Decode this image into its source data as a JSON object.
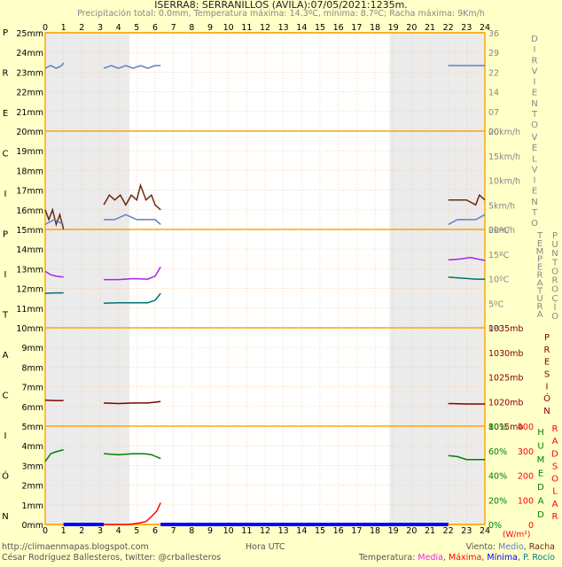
{
  "title": "ISERRA8: SERRANILLOS (AVILA):07/05/2021:1235m.",
  "subtitle": "Precipitación total: 0.0mm, Temperatura máxima: 14.3ºC, mínima: 8.7ºC; Racha máxima: 9Km/h",
  "footer": {
    "blog": "http://climaenmapas.blogspot.com",
    "author": "César Rodríguez Ballesteros, twitter: @crballesteros",
    "xlabel": "Hora UTC",
    "wind_legend_prefix": "Viento: ",
    "wind_legend_media": "Medio",
    "wind_legend_sep": ", ",
    "wind_legend_racha": "Racha",
    "temp_legend_prefix": "Temperatura: ",
    "temp_legend_media": "Media",
    "temp_legend_maxima": "Máxima",
    "temp_legend_minima": "Mínima",
    "temp_legend_rocio": "P. Rocío",
    "sep": ", "
  },
  "left_vertical_label": "PRECIPITACIÓN",
  "colors": {
    "background": "#ffffc8",
    "plot_bg": "#ffffff",
    "night_shade": "#ebebeb",
    "panel_border": "#ffa500",
    "grid": "#ffc080",
    "wind_media": "#6080c0",
    "wind_racha": "#6b2a10",
    "temp_media": "#aa22ee",
    "temp_dewpoint": "#007070",
    "pressure": "#800000",
    "humidity": "#008000",
    "solar": "#ff0000",
    "rain_bar": "#0000ff"
  },
  "chart_data": {
    "type": "line",
    "x_range": [
      0,
      24
    ],
    "x_ticks": [
      "0",
      "1",
      "2",
      "3",
      "4",
      "5",
      "6",
      "7",
      "8",
      "9",
      "10",
      "11",
      "12",
      "13",
      "14",
      "15",
      "16",
      "17",
      "18",
      "19",
      "20",
      "21",
      "22",
      "23",
      "24"
    ],
    "night_shading_hours": [
      [
        0,
        4.6
      ],
      [
        18.8,
        24
      ]
    ],
    "precip_ticks_left": [
      "25mm",
      "24mm",
      "23mm",
      "22mm",
      "21mm",
      "20mm",
      "19mm",
      "18mm",
      "17mm",
      "16mm",
      "15mm",
      "14mm",
      "13mm",
      "12mm",
      "11mm",
      "10mm",
      "9mm",
      "8mm",
      "7mm",
      "6mm",
      "5mm",
      "4mm",
      "3mm",
      "2mm",
      "1mm",
      "0mm"
    ],
    "precipitation_total_mm": 0.0,
    "data_gaps_hours": [
      [
        1,
        3.2
      ],
      [
        6.3,
        22
      ]
    ],
    "panels": [
      {
        "name": "wind_direction",
        "label": "DIR VIENTO",
        "ticks": [
          "36",
          "29",
          "22",
          "14",
          "07",
          "00"
        ],
        "series": [
          {
            "name": "Dirección",
            "x": [
              0,
              0.3,
              0.6,
              0.9,
              1.0
            ],
            "y": [
              23,
              24,
              23,
              24,
              25
            ]
          },
          {
            "name": "Dirección",
            "x": [
              3.2,
              3.6,
              4.0,
              4.4,
              4.8,
              5.2,
              5.6,
              6.0,
              6.3
            ],
            "y": [
              23,
              24,
              23,
              24,
              23,
              24,
              23,
              24,
              24
            ]
          },
          {
            "name": "Dirección",
            "x": [
              22,
              22.5,
              23,
              23.5,
              24
            ],
            "y": [
              24,
              24,
              24,
              24,
              24
            ]
          }
        ]
      },
      {
        "name": "wind_speed",
        "label": "VEL VIENTO",
        "ticks": [
          "20km/h",
          "15km/h",
          "10km/h",
          "5km/h",
          "0km/h"
        ],
        "series": [
          {
            "name": "Racha",
            "x": [
              0,
              0.2,
              0.4,
              0.6,
              0.8,
              1.0
            ],
            "y": [
              4,
              2,
              4,
              1,
              3,
              0
            ]
          },
          {
            "name": "Racha",
            "x": [
              3.2,
              3.5,
              3.8,
              4.1,
              4.4,
              4.7,
              5.0,
              5.2,
              5.5,
              5.8,
              6.0,
              6.3
            ],
            "y": [
              5,
              7,
              6,
              7,
              5,
              7,
              6,
              9,
              6,
              7,
              5,
              4
            ]
          },
          {
            "name": "Racha",
            "x": [
              22,
              22.5,
              23,
              23.5,
              23.7,
              24
            ],
            "y": [
              6,
              6,
              6,
              5,
              7,
              6
            ]
          },
          {
            "name": "Medio",
            "x": [
              0,
              0.5,
              1.0
            ],
            "y": [
              1,
              2,
              1
            ]
          },
          {
            "name": "Medio",
            "x": [
              3.2,
              3.8,
              4.4,
              5.0,
              5.6,
              6.0,
              6.3
            ],
            "y": [
              2,
              2,
              3,
              2,
              2,
              2,
              1
            ]
          },
          {
            "name": "Medio",
            "x": [
              22,
              22.5,
              23,
              23.5,
              24
            ],
            "y": [
              1,
              2,
              2,
              2,
              3
            ]
          }
        ]
      },
      {
        "name": "temperature",
        "label": "TEMPERATURA PUNTO ROCÍO",
        "ticks": [
          "20ºC",
          "15ºC",
          "10ºC",
          "5ºC",
          "0ºC"
        ],
        "series": [
          {
            "name": "Media",
            "x": [
              0,
              0.3,
              0.6,
              1.0
            ],
            "y": [
              11.5,
              10.8,
              10.5,
              10.3
            ]
          },
          {
            "name": "Media",
            "x": [
              3.2,
              4.0,
              4.8,
              5.6,
              6.0,
              6.3
            ],
            "y": [
              9.8,
              9.8,
              10.0,
              9.9,
              10.5,
              12.4
            ]
          },
          {
            "name": "Media",
            "x": [
              22,
              22.7,
              23.2,
              24
            ],
            "y": [
              13.8,
              14.0,
              14.3,
              13.7
            ]
          },
          {
            "name": "P. Rocío",
            "x": [
              0,
              0.5,
              1.0
            ],
            "y": [
              7.0,
              7.1,
              7.1
            ]
          },
          {
            "name": "P. Rocío",
            "x": [
              3.2,
              4.0,
              4.8,
              5.6,
              6.0,
              6.3
            ],
            "y": [
              5.0,
              5.1,
              5.1,
              5.1,
              5.6,
              7.0
            ]
          },
          {
            "name": "P. Rocío",
            "x": [
              22,
              22.7,
              23.5,
              24
            ],
            "y": [
              10.3,
              10.1,
              9.9,
              9.9
            ]
          }
        ]
      },
      {
        "name": "pressure",
        "label": "PRESIÓN",
        "ticks": [
          "1035mb",
          "1030mb",
          "1025mb",
          "1020mb",
          "1015mb"
        ],
        "series": [
          {
            "name": "Presión",
            "x": [
              0,
              0.5,
              1.0
            ],
            "y": [
              1020.3,
              1020.2,
              1020.2
            ]
          },
          {
            "name": "Presión",
            "x": [
              3.2,
              4.0,
              4.8,
              5.6,
              6.3
            ],
            "y": [
              1019.7,
              1019.6,
              1019.7,
              1019.7,
              1020.0
            ]
          },
          {
            "name": "Presión",
            "x": [
              22,
              23,
              24
            ],
            "y": [
              1019.6,
              1019.5,
              1019.5
            ]
          }
        ]
      },
      {
        "name": "humidity_solar",
        "label_humidity": "HUMEDAD",
        "label_solar": "RAD SOLAR",
        "ticks_humidity": [
          "80%",
          "60%",
          "40%",
          "20%",
          "0%"
        ],
        "ticks_solar": [
          "400",
          "300",
          "200",
          "100",
          "0"
        ],
        "solar_unit": "(W/m²)",
        "series": [
          {
            "name": "Humedad",
            "x": [
              0,
              0.3,
              0.6,
              1.0
            ],
            "y": [
              64,
              72,
              74,
              76
            ]
          },
          {
            "name": "Humedad",
            "x": [
              3.2,
              4.0,
              4.8,
              5.4,
              5.8,
              6.3
            ],
            "y": [
              72,
              71,
              72,
              72,
              71,
              67
            ]
          },
          {
            "name": "Humedad",
            "x": [
              22,
              22.5,
              23,
              24
            ],
            "y": [
              70,
              69,
              66,
              66
            ]
          },
          {
            "name": "Radiación solar",
            "x": [
              3.2,
              4.5,
              5.0,
              5.5,
              5.8,
              6.1,
              6.3
            ],
            "y": [
              0,
              0,
              5,
              15,
              40,
              70,
              110
            ]
          }
        ]
      }
    ]
  }
}
